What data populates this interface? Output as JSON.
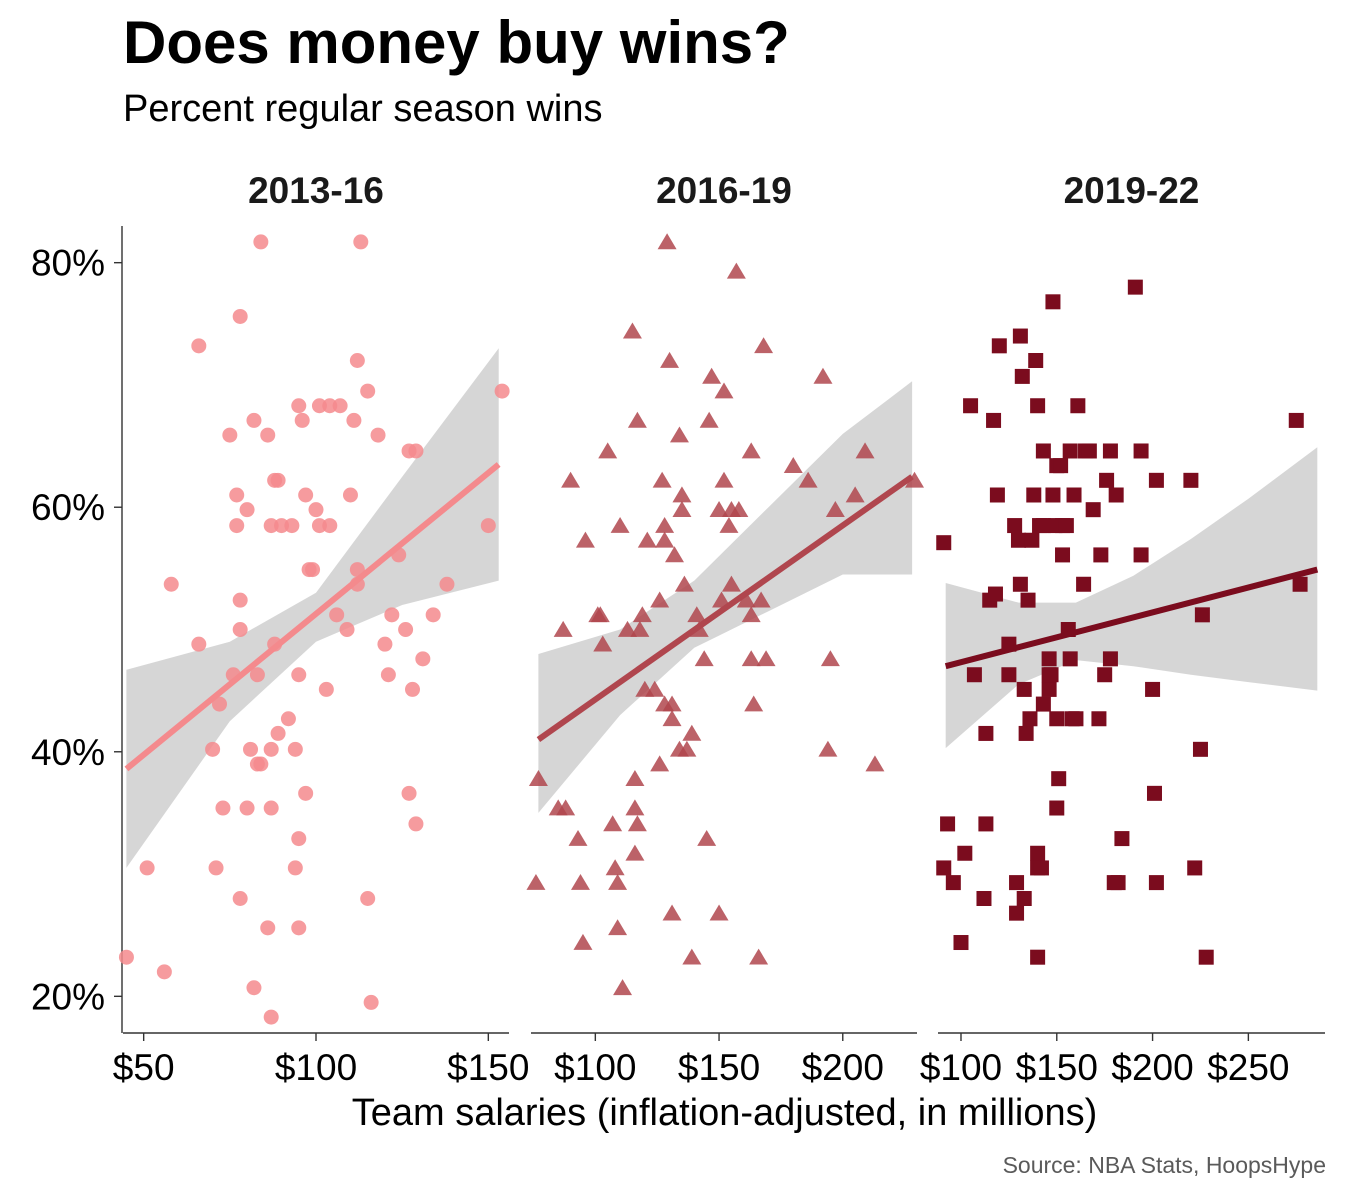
{
  "title": "Does money buy wins?",
  "subtitle": "Percent regular season wins",
  "xlabel": "Team salaries (inflation-adjusted, in millions)",
  "caption": "Source: NBA Stats, HoopsHype",
  "colors": {
    "panel_2013_16": "#f48a8d",
    "panel_2016_19": "#b0464e",
    "panel_2019_22": "#7b0c1e",
    "ribbon": "#d4d4d4",
    "axis": "#333333",
    "caption": "#5a5a5a"
  },
  "chart_data": {
    "type": "scatter",
    "ylim": [
      0.17,
      0.83
    ],
    "y_ticks": [
      0.2,
      0.4,
      0.6,
      0.8
    ],
    "y_tick_labels": [
      "20%",
      "40%",
      "60%",
      "80%"
    ],
    "grid": false,
    "legend": "none",
    "panels": [
      {
        "name": "2013-16",
        "shape": "circle",
        "xlim": [
          44,
          156
        ],
        "x_ticks": [
          50,
          100,
          150
        ],
        "x_tick_labels": [
          "$50",
          "$100",
          "$150"
        ],
        "trend": {
          "x": [
            45,
            153
          ],
          "y": [
            0.386,
            0.635
          ]
        },
        "ribbon": {
          "x": [
            45,
            75,
            100,
            125,
            153
          ],
          "lower": [
            0.305,
            0.425,
            0.49,
            0.52,
            0.54
          ],
          "upper": [
            0.467,
            0.49,
            0.53,
            0.625,
            0.73
          ]
        },
        "points": [
          [
            45,
            0.232
          ],
          [
            51,
            0.305
          ],
          [
            56,
            0.22
          ],
          [
            58,
            0.537
          ],
          [
            66,
            0.488
          ],
          [
            66,
            0.732
          ],
          [
            70,
            0.402
          ],
          [
            71,
            0.305
          ],
          [
            72,
            0.439
          ],
          [
            73,
            0.354
          ],
          [
            75,
            0.659
          ],
          [
            76,
            0.463
          ],
          [
            77,
            0.61
          ],
          [
            77,
            0.585
          ],
          [
            78,
            0.5
          ],
          [
            78,
            0.524
          ],
          [
            78,
            0.28
          ],
          [
            78,
            0.756
          ],
          [
            80,
            0.598
          ],
          [
            80,
            0.354
          ],
          [
            81,
            0.402
          ],
          [
            82,
            0.671
          ],
          [
            82,
            0.207
          ],
          [
            83,
            0.39
          ],
          [
            83,
            0.463
          ],
          [
            84,
            0.817
          ],
          [
            84,
            0.39
          ],
          [
            86,
            0.659
          ],
          [
            86,
            0.256
          ],
          [
            87,
            0.183
          ],
          [
            87,
            0.354
          ],
          [
            87,
            0.585
          ],
          [
            87,
            0.402
          ],
          [
            88,
            0.622
          ],
          [
            88,
            0.488
          ],
          [
            89,
            0.622
          ],
          [
            89,
            0.415
          ],
          [
            90,
            0.585
          ],
          [
            92,
            0.427
          ],
          [
            93,
            0.585
          ],
          [
            94,
            0.402
          ],
          [
            94,
            0.305
          ],
          [
            95,
            0.463
          ],
          [
            95,
            0.329
          ],
          [
            95,
            0.256
          ],
          [
            95,
            0.683
          ],
          [
            96,
            0.671
          ],
          [
            97,
            0.366
          ],
          [
            97,
            0.61
          ],
          [
            98,
            0.549
          ],
          [
            99,
            0.549
          ],
          [
            100,
            0.598
          ],
          [
            101,
            0.585
          ],
          [
            101,
            0.683
          ],
          [
            104,
            0.585
          ],
          [
            103,
            0.451
          ],
          [
            104,
            0.683
          ],
          [
            106,
            0.512
          ],
          [
            107,
            0.683
          ],
          [
            109,
            0.5
          ],
          [
            110,
            0.61
          ],
          [
            111,
            0.671
          ],
          [
            112,
            0.549
          ],
          [
            112,
            0.537
          ],
          [
            112,
            0.72
          ],
          [
            113,
            0.817
          ],
          [
            115,
            0.695
          ],
          [
            115,
            0.28
          ],
          [
            116,
            0.195
          ],
          [
            118,
            0.659
          ],
          [
            120,
            0.488
          ],
          [
            121,
            0.463
          ],
          [
            122,
            0.512
          ],
          [
            124,
            0.561
          ],
          [
            126,
            0.5
          ],
          [
            127,
            0.366
          ],
          [
            127,
            0.646
          ],
          [
            128,
            0.451
          ],
          [
            129,
            0.341
          ],
          [
            129,
            0.646
          ],
          [
            131,
            0.476
          ],
          [
            134,
            0.512
          ],
          [
            138,
            0.537
          ],
          [
            150,
            0.585
          ],
          [
            154,
            0.695
          ]
        ]
      },
      {
        "name": "2016-19",
        "shape": "triangle",
        "xlim": [
          74,
          230
        ],
        "x_ticks": [
          100,
          150,
          200
        ],
        "x_tick_labels": [
          "$100",
          "$150",
          "$200"
        ],
        "trend": {
          "x": [
            77,
            228
          ],
          "y": [
            0.41,
            0.625
          ]
        },
        "ribbon": {
          "x": [
            77,
            110,
            140,
            170,
            200,
            228
          ],
          "lower": [
            0.35,
            0.43,
            0.485,
            0.515,
            0.545,
            0.545
          ],
          "upper": [
            0.48,
            0.5,
            0.54,
            0.6,
            0.66,
            0.703
          ]
        },
        "points": [
          [
            76,
            0.293
          ],
          [
            77,
            0.378
          ],
          [
            85,
            0.354
          ],
          [
            87,
            0.5
          ],
          [
            88,
            0.354
          ],
          [
            90,
            0.622
          ],
          [
            93,
            0.329
          ],
          [
            94,
            0.293
          ],
          [
            95,
            0.244
          ],
          [
            96,
            0.573
          ],
          [
            101,
            0.512
          ],
          [
            102,
            0.512
          ],
          [
            103,
            0.488
          ],
          [
            105,
            0.646
          ],
          [
            107,
            0.341
          ],
          [
            108,
            0.305
          ],
          [
            109,
            0.256
          ],
          [
            109,
            0.293
          ],
          [
            110,
            0.585
          ],
          [
            111,
            0.207
          ],
          [
            113,
            0.5
          ],
          [
            115,
            0.744
          ],
          [
            116,
            0.378
          ],
          [
            116,
            0.317
          ],
          [
            116,
            0.354
          ],
          [
            117,
            0.671
          ],
          [
            117,
            0.341
          ],
          [
            118,
            0.5
          ],
          [
            119,
            0.512
          ],
          [
            120,
            0.451
          ],
          [
            121,
            0.573
          ],
          [
            124,
            0.451
          ],
          [
            126,
            0.39
          ],
          [
            126,
            0.524
          ],
          [
            127,
            0.622
          ],
          [
            128,
            0.439
          ],
          [
            128,
            0.585
          ],
          [
            128,
            0.573
          ],
          [
            129,
            0.817
          ],
          [
            130,
            0.72
          ],
          [
            131,
            0.427
          ],
          [
            131,
            0.439
          ],
          [
            131,
            0.268
          ],
          [
            132,
            0.561
          ],
          [
            134,
            0.402
          ],
          [
            134,
            0.659
          ],
          [
            135,
            0.61
          ],
          [
            135,
            0.598
          ],
          [
            136,
            0.537
          ],
          [
            137,
            0.402
          ],
          [
            139,
            0.415
          ],
          [
            139,
            0.232
          ],
          [
            141,
            0.512
          ],
          [
            142,
            0.5
          ],
          [
            144,
            0.476
          ],
          [
            145,
            0.329
          ],
          [
            146,
            0.671
          ],
          [
            147,
            0.707
          ],
          [
            150,
            0.598
          ],
          [
            150,
            0.268
          ],
          [
            151,
            0.524
          ],
          [
            152,
            0.622
          ],
          [
            152,
            0.695
          ],
          [
            154,
            0.585
          ],
          [
            155,
            0.598
          ],
          [
            155,
            0.537
          ],
          [
            157,
            0.793
          ],
          [
            158,
            0.598
          ],
          [
            161,
            0.524
          ],
          [
            163,
            0.646
          ],
          [
            163,
            0.512
          ],
          [
            163,
            0.476
          ],
          [
            164,
            0.439
          ],
          [
            166,
            0.232
          ],
          [
            167,
            0.524
          ],
          [
            168,
            0.732
          ],
          [
            169,
            0.476
          ],
          [
            180,
            0.634
          ],
          [
            186,
            0.622
          ],
          [
            192,
            0.707
          ],
          [
            194,
            0.402
          ],
          [
            195,
            0.476
          ],
          [
            197,
            0.598
          ],
          [
            205,
            0.61
          ],
          [
            209,
            0.646
          ],
          [
            213,
            0.39
          ],
          [
            229,
            0.622
          ]
        ]
      },
      {
        "name": "2019-22",
        "shape": "square",
        "xlim": [
          88,
          290
        ],
        "x_ticks": [
          100,
          150,
          200,
          250
        ],
        "x_tick_labels": [
          "$100",
          "$150",
          "$200",
          "$250"
        ],
        "trend": {
          "x": [
            92,
            286
          ],
          "y": [
            0.47,
            0.549
          ]
        },
        "ribbon": {
          "x": [
            92,
            130,
            160,
            190,
            220,
            250,
            286
          ],
          "lower": [
            0.403,
            0.455,
            0.475,
            0.47,
            0.463,
            0.457,
            0.45
          ],
          "upper": [
            0.538,
            0.522,
            0.522,
            0.544,
            0.574,
            0.607,
            0.649
          ]
        },
        "points": [
          [
            91,
            0.305
          ],
          [
            91,
            0.571
          ],
          [
            93,
            0.341
          ],
          [
            96,
            0.293
          ],
          [
            100,
            0.244
          ],
          [
            102,
            0.317
          ],
          [
            105,
            0.683
          ],
          [
            107,
            0.463
          ],
          [
            112,
            0.28
          ],
          [
            113,
            0.415
          ],
          [
            113,
            0.341
          ],
          [
            115,
            0.524
          ],
          [
            117,
            0.671
          ],
          [
            118,
            0.529
          ],
          [
            119,
            0.61
          ],
          [
            120,
            0.732
          ],
          [
            125,
            0.463
          ],
          [
            125,
            0.488
          ],
          [
            128,
            0.585
          ],
          [
            129,
            0.268
          ],
          [
            129,
            0.293
          ],
          [
            130,
            0.573
          ],
          [
            131,
            0.74
          ],
          [
            131,
            0.537
          ],
          [
            132,
            0.707
          ],
          [
            133,
            0.451
          ],
          [
            133,
            0.28
          ],
          [
            134,
            0.415
          ],
          [
            135,
            0.524
          ],
          [
            136,
            0.427
          ],
          [
            137,
            0.573
          ],
          [
            138,
            0.61
          ],
          [
            139,
            0.72
          ],
          [
            140,
            0.317
          ],
          [
            140,
            0.305
          ],
          [
            140,
            0.232
          ],
          [
            140,
            0.683
          ],
          [
            141,
            0.585
          ],
          [
            142,
            0.305
          ],
          [
            143,
            0.439
          ],
          [
            143,
            0.646
          ],
          [
            143,
            0.585
          ],
          [
            146,
            0.476
          ],
          [
            146,
            0.451
          ],
          [
            146,
            0.463
          ],
          [
            147,
            0.463
          ],
          [
            148,
            0.768
          ],
          [
            148,
            0.61
          ],
          [
            149,
            0.585
          ],
          [
            150,
            0.427
          ],
          [
            150,
            0.354
          ],
          [
            150,
            0.634
          ],
          [
            151,
            0.378
          ],
          [
            152,
            0.634
          ],
          [
            153,
            0.585
          ],
          [
            153,
            0.561
          ],
          [
            155,
            0.585
          ],
          [
            156,
            0.5
          ],
          [
            157,
            0.476
          ],
          [
            157,
            0.646
          ],
          [
            158,
            0.427
          ],
          [
            159,
            0.61
          ],
          [
            160,
            0.427
          ],
          [
            161,
            0.683
          ],
          [
            164,
            0.537
          ],
          [
            165,
            0.646
          ],
          [
            167,
            0.646
          ],
          [
            169,
            0.598
          ],
          [
            172,
            0.427
          ],
          [
            173,
            0.561
          ],
          [
            175,
            0.463
          ],
          [
            176,
            0.622
          ],
          [
            178,
            0.646
          ],
          [
            178,
            0.476
          ],
          [
            180,
            0.293
          ],
          [
            181,
            0.61
          ],
          [
            182,
            0.293
          ],
          [
            184,
            0.329
          ],
          [
            191,
            0.78
          ],
          [
            194,
            0.646
          ],
          [
            194,
            0.561
          ],
          [
            200,
            0.451
          ],
          [
            201,
            0.366
          ],
          [
            202,
            0.293
          ],
          [
            202,
            0.622
          ],
          [
            220,
            0.622
          ],
          [
            222,
            0.305
          ],
          [
            225,
            0.402
          ],
          [
            226,
            0.512
          ],
          [
            228,
            0.232
          ],
          [
            275,
            0.671
          ],
          [
            277,
            0.537
          ]
        ]
      }
    ]
  }
}
